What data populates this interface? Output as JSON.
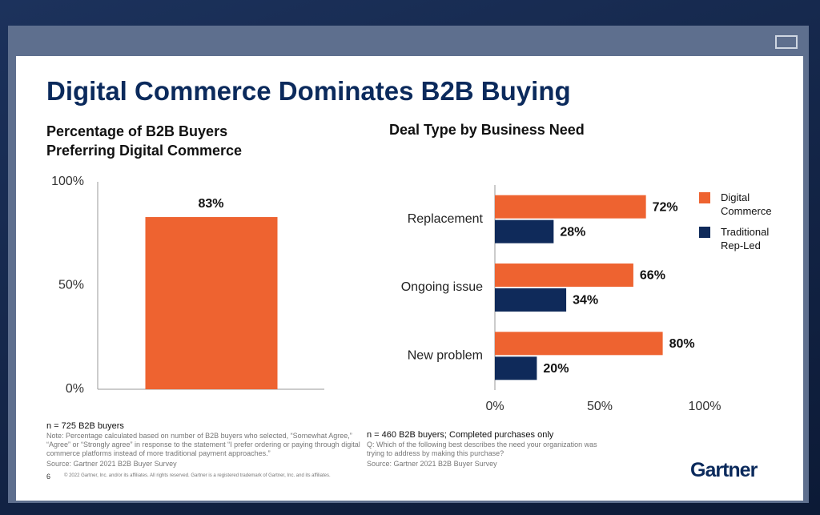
{
  "title": "Digital Commerce Dominates B2B Buying",
  "page_number": "6",
  "copyright": "© 2022 Gartner, Inc. and/or its affiliates. All rights reserved. Gartner is a registered trademark of Gartner, Inc. and its affiliates.",
  "logo": "Gartner",
  "chart_data": [
    {
      "type": "bar",
      "title": "Percentage of B2B Buyers Preferring Digital Commerce",
      "categories": [
        null
      ],
      "values": [
        83
      ],
      "value_labels": [
        "83%"
      ],
      "color": "#ee6330",
      "ylim": [
        0,
        100
      ],
      "yticks": [
        {
          "value": 0,
          "label": "0%"
        },
        {
          "value": 50,
          "label": "50%"
        },
        {
          "value": 100,
          "label": "100%"
        }
      ],
      "sample": "n = 725 B2B buyers",
      "note": "Note: Percentage calculated based on number of B2B buyers who selected, “Somewhat Agree,” “Agree” or “Strongly agree” in response to the statement “I prefer ordering or paying through digital commerce platforms instead of more traditional payment approaches.”",
      "source": "Source: Gartner 2021 B2B Buyer Survey"
    },
    {
      "type": "barh",
      "title": "Deal Type by Business Need",
      "categories": [
        "Replacement",
        "Ongoing issue",
        "New problem"
      ],
      "series": [
        {
          "name": "Digital Commerce",
          "color": "#ee6330",
          "values": [
            72,
            66,
            80
          ],
          "value_labels": [
            "72%",
            "66%",
            "80%"
          ]
        },
        {
          "name": "Traditional Rep-Led",
          "color": "#0f2a5a",
          "values": [
            28,
            34,
            20
          ],
          "value_labels": [
            "28%",
            "34%",
            "20%"
          ]
        }
      ],
      "xlim": [
        0,
        100
      ],
      "xticks": [
        {
          "value": 0,
          "label": "0%"
        },
        {
          "value": 50,
          "label": "50%"
        },
        {
          "value": 100,
          "label": "100%"
        }
      ],
      "legend": "right",
      "sample": "n = 460 B2B buyers; Completed purchases only",
      "note": "Q: Which of the following best describes the need your organization was trying to address by making this purchase?",
      "source": "Source: Gartner 2021 B2B Buyer Survey"
    }
  ]
}
